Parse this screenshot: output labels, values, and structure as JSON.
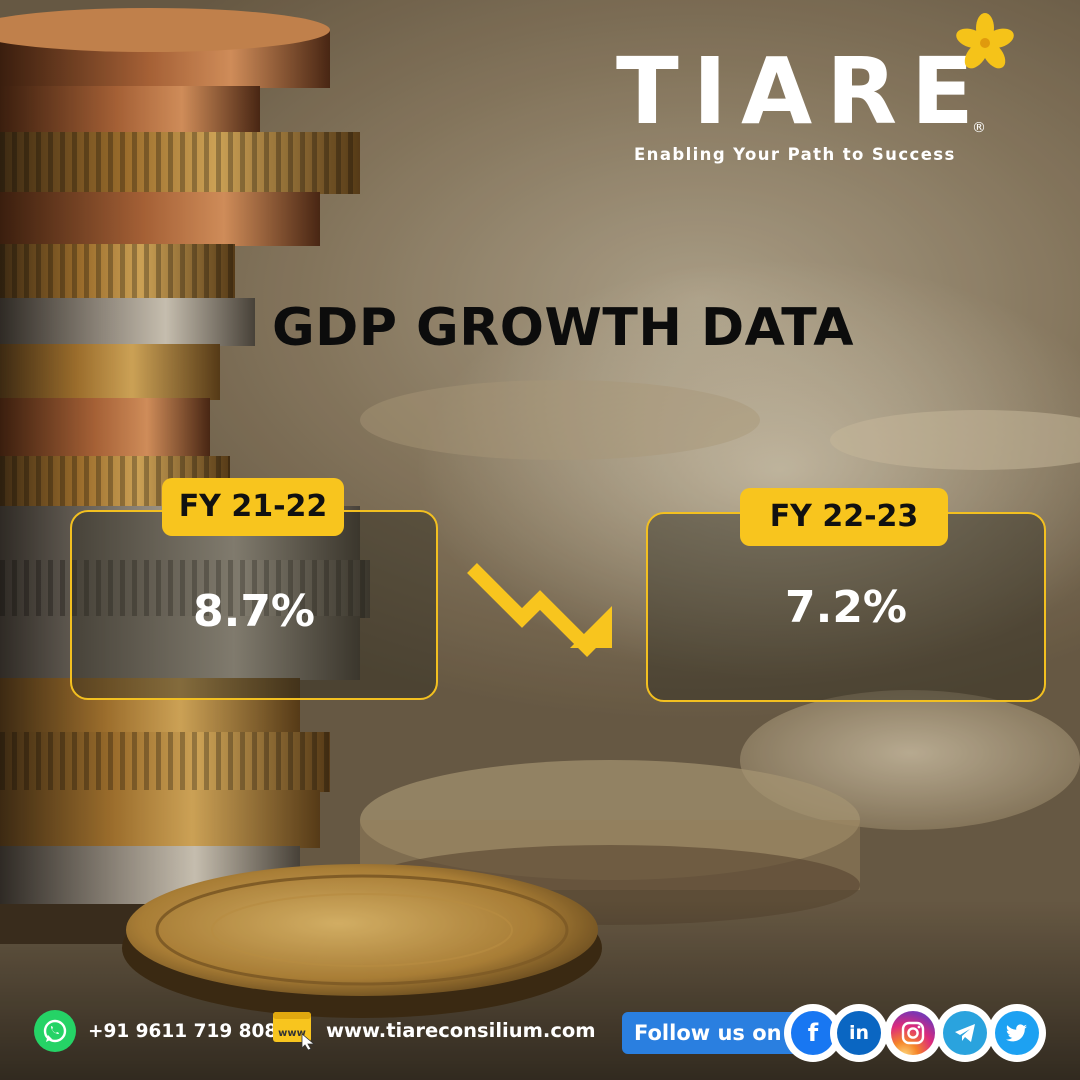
{
  "brand": {
    "name": "TIARE",
    "registered_mark": "®",
    "tagline": "Enabling Your Path to Success"
  },
  "headline": "GDP GROWTH DATA",
  "periods": [
    {
      "label": "FY 21-22",
      "value": "8.7%"
    },
    {
      "label": "FY 22-23",
      "value": "7.2%"
    }
  ],
  "trend_icon": "down-trend-arrow-icon",
  "footer": {
    "phone": "+91 9611 719 808",
    "phone_icon": "whatsapp-icon",
    "website": "www.tiareconsilium.com",
    "website_icon": "www-icon",
    "www_badge": "www",
    "follow_label": "Follow us on",
    "socials": [
      {
        "name": "facebook-icon",
        "color": "#1877f2",
        "glyph": "f"
      },
      {
        "name": "linkedin-icon",
        "color": "#0a66c2",
        "glyph": "in"
      },
      {
        "name": "instagram-icon",
        "color": "#d62976"
      },
      {
        "name": "telegram-icon",
        "color": "#2aa3de"
      },
      {
        "name": "twitter-icon",
        "color": "#1da1f2"
      }
    ]
  },
  "colors": {
    "accent": "#f8c51e",
    "card_border": "#f3c020",
    "headline": "#0c0c0c",
    "follow_pill": "#2a7fe0",
    "whatsapp": "#25d366"
  }
}
